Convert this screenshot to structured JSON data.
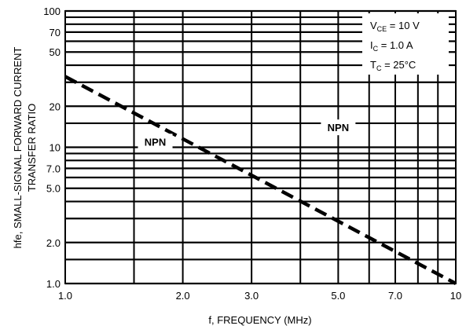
{
  "chart_data": {
    "type": "line",
    "scale": {
      "x": "log",
      "y": "log"
    },
    "xlim": [
      1.0,
      10
    ],
    "ylim": [
      1.0,
      100
    ],
    "xlabel": "f, FREQUENCY (MHz)",
    "ylabel_line1": "hfe, SMALL-SIGNAL FORWARD CURRENT",
    "ylabel_line2": "TRANSFER RATIO",
    "grid": true,
    "x_major_ticks": [
      {
        "value": 1.0,
        "label": "1.0"
      },
      {
        "value": 2.0,
        "label": "2.0"
      },
      {
        "value": 3.0,
        "label": "3.0"
      },
      {
        "value": 5.0,
        "label": "5.0"
      },
      {
        "value": 7.0,
        "label": "7.0"
      },
      {
        "value": 10,
        "label": "10"
      }
    ],
    "x_minor_grid": [
      1.5,
      4.0,
      6.0,
      8.0,
      9.0
    ],
    "y_major_ticks": [
      {
        "value": 1.0,
        "label": "1.0"
      },
      {
        "value": 2.0,
        "label": "2.0"
      },
      {
        "value": 5.0,
        "label": "5.0"
      },
      {
        "value": 7.0,
        "label": "7.0"
      },
      {
        "value": 10,
        "label": "10"
      },
      {
        "value": 20,
        "label": "20"
      },
      {
        "value": 50,
        "label": "50"
      },
      {
        "value": 70,
        "label": "70"
      },
      {
        "value": 100,
        "label": "100"
      }
    ],
    "y_minor_grid": [
      1.5,
      3.0,
      4.0,
      6.0,
      8.0,
      9.0,
      15,
      30,
      40,
      60,
      80,
      90
    ],
    "series": [
      {
        "name": "NPN",
        "dash": true,
        "points": [
          {
            "x": 1.0,
            "y": 33
          },
          {
            "x": 10,
            "y": 1.0
          }
        ]
      }
    ],
    "series_labels": [
      {
        "text": "NPN",
        "at_x": 1.7,
        "at_y": 11
      },
      {
        "text": "NPN",
        "at_x": 5.0,
        "at_y": 14
      }
    ],
    "conditions": [
      {
        "main": "V",
        "sub": "CE",
        "rest": " = 10 V"
      },
      {
        "main": "I",
        "sub": "C",
        "rest": " = 1.0 A"
      },
      {
        "main": "T",
        "sub": "C",
        "rest": " = 25°C"
      }
    ]
  }
}
